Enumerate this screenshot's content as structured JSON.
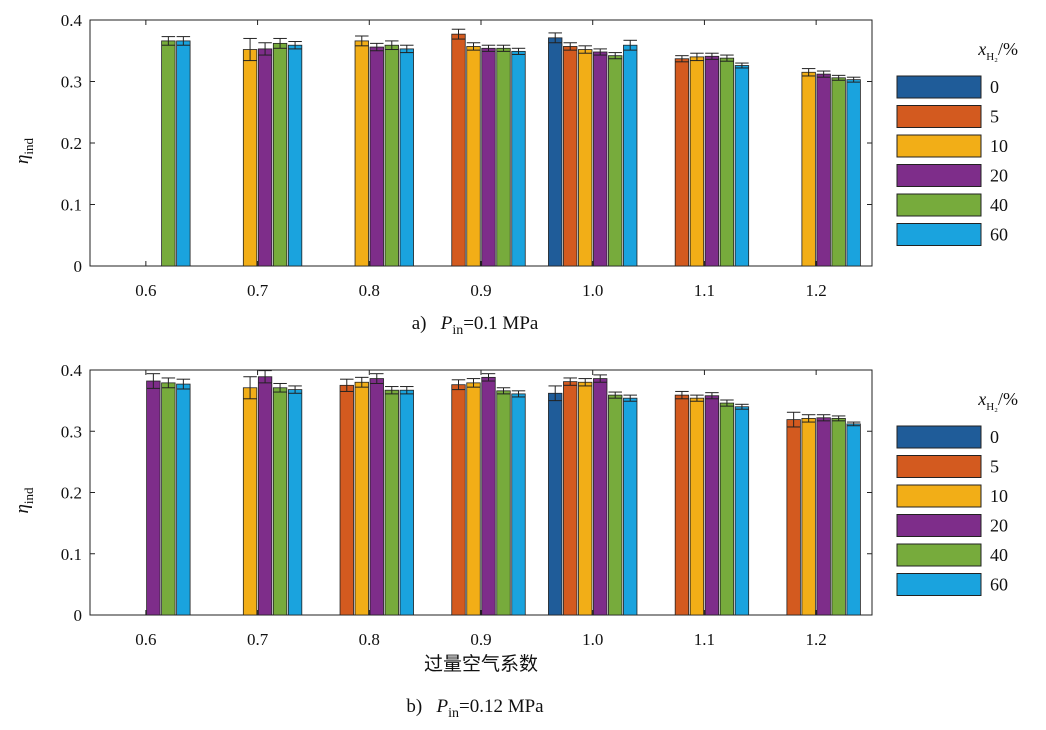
{
  "chart_data": [
    {
      "type": "bar",
      "panel_label": "a)",
      "caption_var": "P",
      "caption_sub": "in",
      "caption_value": "=0.1 MPa",
      "title": "",
      "xlabel": "",
      "ylabel": "η",
      "ylabel_sub": "ind",
      "ylim": [
        0,
        0.4
      ],
      "yticks": [
        "0",
        "0.1",
        "0.2",
        "0.3",
        "0.4"
      ],
      "categories": [
        "0.6",
        "0.7",
        "0.8",
        "0.9",
        "1.0",
        "1.1",
        "1.2"
      ],
      "legend_title_var": "x",
      "legend_title_sub": "H₂",
      "legend_title_unit": "/%",
      "series": [
        {
          "name": "0",
          "color": "#1f5c99",
          "values": [
            null,
            null,
            null,
            null,
            0.371,
            null,
            null
          ],
          "errors": [
            null,
            null,
            null,
            null,
            0.008,
            null,
            null
          ]
        },
        {
          "name": "5",
          "color": "#d35a1f",
          "values": [
            null,
            null,
            null,
            0.377,
            0.357,
            0.337,
            null
          ],
          "errors": [
            null,
            null,
            null,
            0.008,
            0.006,
            0.005,
            null
          ]
        },
        {
          "name": "10",
          "color": "#f2ae17",
          "values": [
            null,
            0.352,
            0.366,
            0.357,
            0.352,
            0.34,
            0.315
          ],
          "errors": [
            null,
            0.018,
            0.008,
            0.006,
            0.006,
            0.006,
            0.006
          ]
        },
        {
          "name": "20",
          "color": "#7e2d8a",
          "values": [
            null,
            0.353,
            0.356,
            0.354,
            0.348,
            0.341,
            0.312
          ],
          "errors": [
            null,
            0.01,
            0.006,
            0.005,
            0.005,
            0.005,
            0.005
          ]
        },
        {
          "name": "40",
          "color": "#77ab3c",
          "values": [
            0.366,
            0.362,
            0.359,
            0.354,
            0.342,
            0.338,
            0.306
          ],
          "errors": [
            0.007,
            0.008,
            0.007,
            0.005,
            0.005,
            0.005,
            0.004
          ]
        },
        {
          "name": "60",
          "color": "#1aa3de",
          "values": [
            0.366,
            0.359,
            0.353,
            0.349,
            0.359,
            0.326,
            0.303
          ],
          "errors": [
            0.007,
            0.006,
            0.006,
            0.005,
            0.008,
            0.004,
            0.004
          ]
        }
      ]
    },
    {
      "type": "bar",
      "panel_label": "b)",
      "caption_var": "P",
      "caption_sub": "in",
      "caption_value": "=0.12 MPa",
      "title": "",
      "xlabel": "过量空气系数",
      "ylabel": "η",
      "ylabel_sub": "ind",
      "ylim": [
        0,
        0.4
      ],
      "yticks": [
        "0",
        "0.1",
        "0.2",
        "0.3",
        "0.4"
      ],
      "categories": [
        "0.6",
        "0.7",
        "0.8",
        "0.9",
        "1.0",
        "1.1",
        "1.2"
      ],
      "legend_title_var": "x",
      "legend_title_sub": "H₂",
      "legend_title_unit": "/%",
      "series": [
        {
          "name": "0",
          "color": "#1f5c99",
          "values": [
            null,
            null,
            null,
            null,
            0.362,
            null,
            null
          ],
          "errors": [
            null,
            null,
            null,
            null,
            0.012,
            null,
            null
          ]
        },
        {
          "name": "5",
          "color": "#d35a1f",
          "values": [
            null,
            null,
            0.375,
            0.376,
            0.381,
            0.359,
            0.319
          ],
          "errors": [
            null,
            null,
            0.01,
            0.008,
            0.006,
            0.006,
            0.012
          ]
        },
        {
          "name": "10",
          "color": "#f2ae17",
          "values": [
            null,
            0.371,
            0.38,
            0.379,
            0.38,
            0.354,
            0.321
          ],
          "errors": [
            null,
            0.018,
            0.008,
            0.007,
            0.006,
            0.005,
            0.006
          ]
        },
        {
          "name": "20",
          "color": "#7e2d8a",
          "values": [
            0.382,
            0.389,
            0.386,
            0.388,
            0.386,
            0.358,
            0.322
          ],
          "errors": [
            0.012,
            0.01,
            0.008,
            0.006,
            0.006,
            0.005,
            0.005
          ]
        },
        {
          "name": "40",
          "color": "#77ab3c",
          "values": [
            0.379,
            0.371,
            0.367,
            0.366,
            0.359,
            0.346,
            0.321
          ],
          "errors": [
            0.008,
            0.007,
            0.006,
            0.005,
            0.005,
            0.005,
            0.004
          ]
        },
        {
          "name": "60",
          "color": "#1aa3de",
          "values": [
            0.377,
            0.368,
            0.367,
            0.361,
            0.354,
            0.34,
            0.312
          ],
          "errors": [
            0.008,
            0.006,
            0.006,
            0.005,
            0.005,
            0.004,
            0.003
          ]
        }
      ]
    }
  ]
}
